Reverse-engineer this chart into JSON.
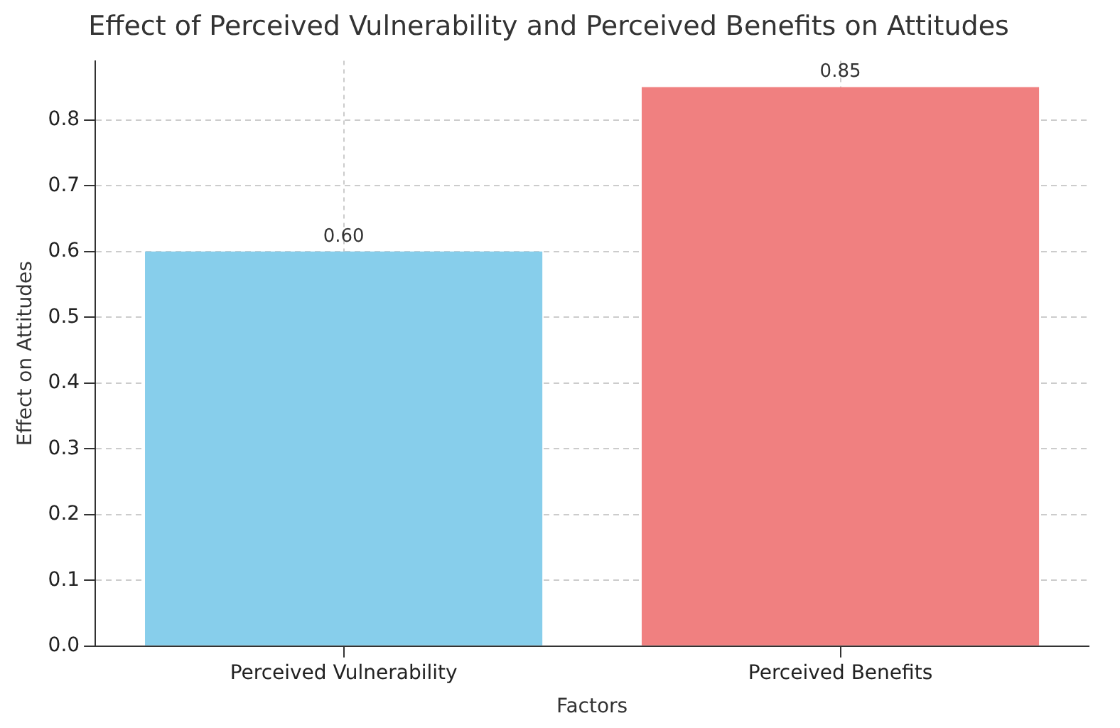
{
  "chart_data": {
    "type": "bar",
    "title": "Effect of Perceived Vulnerability and Perceived Benefits on Attitudes",
    "xlabel": "Factors",
    "ylabel": "Effect on Attitudes",
    "categories": [
      "Perceived Vulnerability",
      "Perceived Benefits"
    ],
    "values": [
      0.6,
      0.85
    ],
    "colors": [
      "#87ceeb",
      "#f08080"
    ],
    "value_labels": [
      "0.60",
      "0.85"
    ],
    "ylim": [
      0,
      0.89
    ],
    "yticks": [
      {
        "value": 0,
        "label": "0.0"
      },
      {
        "value": 0.1,
        "label": "0.1"
      },
      {
        "value": 0.2,
        "label": "0.2"
      },
      {
        "value": 0.3,
        "label": "0.3"
      },
      {
        "value": 0.4,
        "label": "0.4"
      },
      {
        "value": 0.5,
        "label": "0.5"
      },
      {
        "value": 0.6,
        "label": "0.6"
      },
      {
        "value": 0.7,
        "label": "0.7"
      },
      {
        "value": 0.8,
        "label": "0.8"
      }
    ],
    "grid": true,
    "legend": false
  }
}
